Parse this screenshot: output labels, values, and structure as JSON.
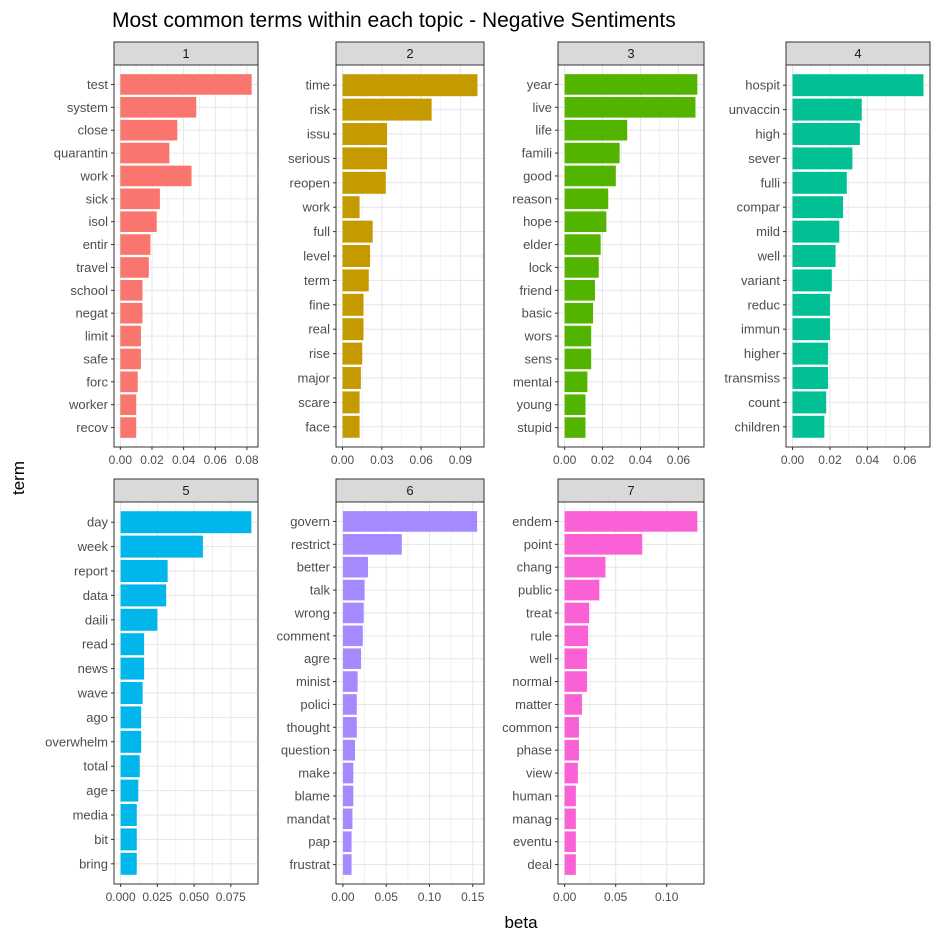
{
  "chart_data": {
    "type": "bar",
    "orientation": "horizontal",
    "title": "Most common terms within each topic - Negative Sentiments",
    "xlabel": "beta",
    "ylabel": "term",
    "grid": true,
    "panels": [
      {
        "topic": "1",
        "color": "#F8766D",
        "xlim": [
          -0.004,
          0.087
        ],
        "ticks": [
          0,
          0.02,
          0.04,
          0.06,
          0.08
        ],
        "tick_labels": [
          "0.00",
          "0.02",
          "0.04",
          "0.06",
          "0.08"
        ],
        "terms": [
          "test",
          "system",
          "close",
          "quarantin",
          "work",
          "sick",
          "isol",
          "entir",
          "travel",
          "school",
          "negat",
          "limit",
          "safe",
          "forc",
          "worker",
          "recov"
        ],
        "values": [
          0.083,
          0.048,
          0.036,
          0.031,
          0.045,
          0.025,
          0.023,
          0.019,
          0.018,
          0.014,
          0.014,
          0.013,
          0.013,
          0.011,
          0.01,
          0.01
        ]
      },
      {
        "topic": "2",
        "color": "#C49A00",
        "xlim": [
          -0.005,
          0.108
        ],
        "ticks": [
          0,
          0.03,
          0.06,
          0.09
        ],
        "tick_labels": [
          "0.00",
          "0.03",
          "0.06",
          "0.09"
        ],
        "terms": [
          "time",
          "risk",
          "issu",
          "serious",
          "reopen",
          "work",
          "full",
          "level",
          "term",
          "fine",
          "real",
          "rise",
          "major",
          "scare",
          "face"
        ],
        "values": [
          0.103,
          0.068,
          0.034,
          0.034,
          0.033,
          0.013,
          0.023,
          0.021,
          0.02,
          0.016,
          0.016,
          0.015,
          0.014,
          0.013,
          0.013
        ]
      },
      {
        "topic": "3",
        "color": "#53B400",
        "xlim": [
          -0.0035,
          0.0735
        ],
        "ticks": [
          0,
          0.02,
          0.04,
          0.06
        ],
        "tick_labels": [
          "0.00",
          "0.02",
          "0.04",
          "0.06"
        ],
        "terms": [
          "year",
          "live",
          "life",
          "famili",
          "good",
          "reason",
          "hope",
          "elder",
          "lock",
          "friend",
          "basic",
          "wors",
          "sens",
          "mental",
          "young",
          "stupid"
        ],
        "values": [
          0.07,
          0.069,
          0.033,
          0.029,
          0.027,
          0.023,
          0.022,
          0.019,
          0.018,
          0.016,
          0.015,
          0.014,
          0.014,
          0.012,
          0.011,
          0.011
        ]
      },
      {
        "topic": "4",
        "color": "#00C094",
        "xlim": [
          -0.0035,
          0.0735
        ],
        "ticks": [
          0,
          0.02,
          0.04,
          0.06
        ],
        "tick_labels": [
          "0.00",
          "0.02",
          "0.04",
          "0.06"
        ],
        "terms": [
          "hospit",
          "unvaccin",
          "high",
          "sever",
          "fulli",
          "compar",
          "mild",
          "well",
          "variant",
          "reduc",
          "immun",
          "higher",
          "transmiss",
          "count",
          "children"
        ],
        "values": [
          0.07,
          0.037,
          0.036,
          0.032,
          0.029,
          0.027,
          0.025,
          0.023,
          0.021,
          0.02,
          0.02,
          0.019,
          0.019,
          0.018,
          0.017
        ]
      },
      {
        "topic": "5",
        "color": "#00B6EB",
        "xlim": [
          -0.0045,
          0.0935
        ],
        "ticks": [
          0,
          0.025,
          0.05,
          0.075
        ],
        "tick_labels": [
          "0.000",
          "0.025",
          "0.050",
          "0.075"
        ],
        "terms": [
          "day",
          "week",
          "report",
          "data",
          "daili",
          "read",
          "news",
          "wave",
          "ago",
          "overwhelm",
          "total",
          "age",
          "media",
          "bit",
          "bring"
        ],
        "values": [
          0.089,
          0.056,
          0.032,
          0.031,
          0.025,
          0.016,
          0.016,
          0.015,
          0.014,
          0.014,
          0.013,
          0.012,
          0.011,
          0.011,
          0.011
        ]
      },
      {
        "topic": "6",
        "color": "#A58AFF",
        "xlim": [
          -0.008,
          0.163
        ],
        "ticks": [
          0,
          0.05,
          0.1,
          0.15
        ],
        "tick_labels": [
          "0.00",
          "0.05",
          "0.10",
          "0.15"
        ],
        "terms": [
          "govern",
          "restrict",
          "better",
          "talk",
          "wrong",
          "comment",
          "agre",
          "minist",
          "polici",
          "thought",
          "question",
          "make",
          "blame",
          "mandat",
          "pap",
          "frustrat"
        ],
        "values": [
          0.155,
          0.068,
          0.029,
          0.025,
          0.024,
          0.023,
          0.021,
          0.017,
          0.016,
          0.016,
          0.014,
          0.012,
          0.012,
          0.011,
          0.01,
          0.01
        ]
      },
      {
        "topic": "7",
        "color": "#FB61D7",
        "xlim": [
          -0.0065,
          0.1365
        ],
        "ticks": [
          0,
          0.05,
          0.1
        ],
        "tick_labels": [
          "0.00",
          "0.05",
          "0.10"
        ],
        "terms": [
          "endem",
          "point",
          "chang",
          "public",
          "treat",
          "rule",
          "well",
          "normal",
          "matter",
          "common",
          "phase",
          "view",
          "human",
          "manag",
          "eventu",
          "deal"
        ],
        "values": [
          0.13,
          0.076,
          0.04,
          0.034,
          0.024,
          0.023,
          0.022,
          0.022,
          0.017,
          0.014,
          0.014,
          0.013,
          0.011,
          0.011,
          0.011,
          0.011
        ]
      }
    ]
  }
}
